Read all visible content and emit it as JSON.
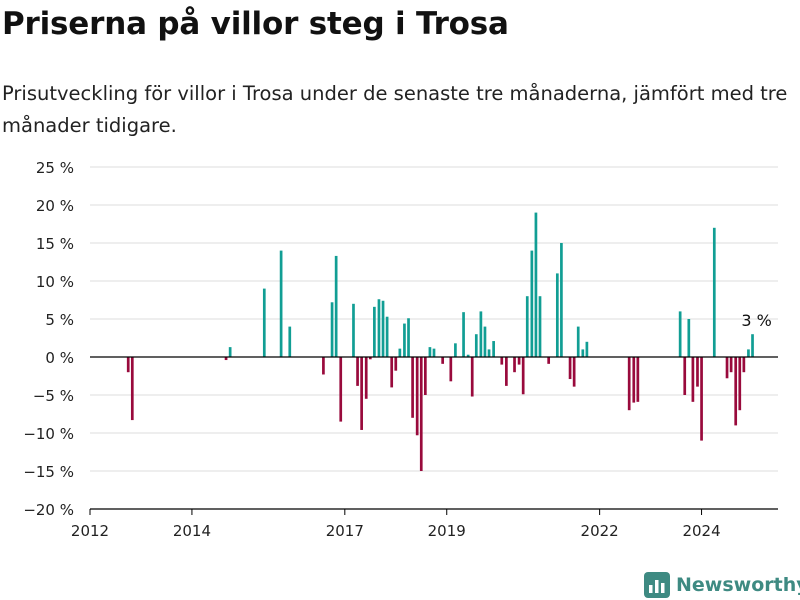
{
  "header": {
    "title": "Priserna på villor steg i Trosa",
    "subtitle": "Prisutveckling för villor i Trosa under de senaste tre månaderna, jämfört med tre månader tidigare."
  },
  "brand": {
    "name": "Newsworthy",
    "icon": "newsworthy-logo-icon"
  },
  "colors": {
    "positive": "#119e94",
    "negative": "#990a3c",
    "grid": "#dddddd",
    "axis": "#000000"
  },
  "chart_data": {
    "type": "bar",
    "title": "",
    "xlabel": "",
    "ylabel": "",
    "ylim": [
      -20,
      25
    ],
    "xlim": [
      2012.0,
      2025.5
    ],
    "y_ticks": [
      {
        "value": 25,
        "label": "25 %"
      },
      {
        "value": 20,
        "label": "20 %"
      },
      {
        "value": 15,
        "label": "15 %"
      },
      {
        "value": 10,
        "label": "10 %"
      },
      {
        "value": 5,
        "label": "5 %"
      },
      {
        "value": 0,
        "label": "0 %"
      },
      {
        "value": -5,
        "label": "−5 %"
      },
      {
        "value": -10,
        "label": "−10 %"
      },
      {
        "value": -15,
        "label": "−15 %"
      },
      {
        "value": -20,
        "label": "−20 %"
      }
    ],
    "x_ticks": [
      {
        "value": 2012,
        "label": "2012"
      },
      {
        "value": 2014,
        "label": "2014"
      },
      {
        "value": 2017,
        "label": "2017"
      },
      {
        "value": 2019,
        "label": "2019"
      },
      {
        "value": 2022,
        "label": "2022"
      },
      {
        "value": 2024,
        "label": "2024"
      }
    ],
    "grid": true,
    "annotation": {
      "x": 2025.08,
      "value": 3,
      "label": "3 %"
    },
    "bars": [
      {
        "x": 2012.75,
        "value": -2
      },
      {
        "x": 2012.83,
        "value": -8.3
      },
      {
        "x": 2014.67,
        "value": -0.4
      },
      {
        "x": 2014.75,
        "value": 1.3
      },
      {
        "x": 2015.42,
        "value": 9
      },
      {
        "x": 2015.75,
        "value": 14
      },
      {
        "x": 2015.92,
        "value": 4
      },
      {
        "x": 2016.58,
        "value": -2.3
      },
      {
        "x": 2016.75,
        "value": 7.2
      },
      {
        "x": 2016.83,
        "value": 13.3
      },
      {
        "x": 2016.92,
        "value": -8.5
      },
      {
        "x": 2017.17,
        "value": 7
      },
      {
        "x": 2017.25,
        "value": -3.8
      },
      {
        "x": 2017.33,
        "value": -9.6
      },
      {
        "x": 2017.42,
        "value": -5.5
      },
      {
        "x": 2017.5,
        "value": -0.3
      },
      {
        "x": 2017.58,
        "value": 6.6
      },
      {
        "x": 2017.67,
        "value": 7.6
      },
      {
        "x": 2017.75,
        "value": 7.4
      },
      {
        "x": 2017.83,
        "value": 5.3
      },
      {
        "x": 2017.92,
        "value": -4
      },
      {
        "x": 2018.0,
        "value": -1.8
      },
      {
        "x": 2018.08,
        "value": 1.1
      },
      {
        "x": 2018.17,
        "value": 4.4
      },
      {
        "x": 2018.25,
        "value": 5.1
      },
      {
        "x": 2018.33,
        "value": -8
      },
      {
        "x": 2018.42,
        "value": -10.3
      },
      {
        "x": 2018.5,
        "value": -15
      },
      {
        "x": 2018.58,
        "value": -5
      },
      {
        "x": 2018.67,
        "value": 1.3
      },
      {
        "x": 2018.75,
        "value": 1.1
      },
      {
        "x": 2018.92,
        "value": -0.9
      },
      {
        "x": 2019.08,
        "value": -3.2
      },
      {
        "x": 2019.17,
        "value": 1.8
      },
      {
        "x": 2019.33,
        "value": 5.9
      },
      {
        "x": 2019.42,
        "value": 0.3
      },
      {
        "x": 2019.5,
        "value": -5.2
      },
      {
        "x": 2019.58,
        "value": 3
      },
      {
        "x": 2019.67,
        "value": 6
      },
      {
        "x": 2019.75,
        "value": 4
      },
      {
        "x": 2019.83,
        "value": 1
      },
      {
        "x": 2019.92,
        "value": 2.1
      },
      {
        "x": 2020.08,
        "value": -1
      },
      {
        "x": 2020.17,
        "value": -3.8
      },
      {
        "x": 2020.33,
        "value": -2
      },
      {
        "x": 2020.42,
        "value": -1
      },
      {
        "x": 2020.5,
        "value": -4.9
      },
      {
        "x": 2020.58,
        "value": 8
      },
      {
        "x": 2020.67,
        "value": 14
      },
      {
        "x": 2020.75,
        "value": 19
      },
      {
        "x": 2020.83,
        "value": 8
      },
      {
        "x": 2021.0,
        "value": -0.9
      },
      {
        "x": 2021.17,
        "value": 11
      },
      {
        "x": 2021.25,
        "value": 15
      },
      {
        "x": 2021.42,
        "value": -2.9
      },
      {
        "x": 2021.5,
        "value": -3.9
      },
      {
        "x": 2021.58,
        "value": 4
      },
      {
        "x": 2021.67,
        "value": 1
      },
      {
        "x": 2021.75,
        "value": 2
      },
      {
        "x": 2022.58,
        "value": -7
      },
      {
        "x": 2022.67,
        "value": -6
      },
      {
        "x": 2022.75,
        "value": -5.9
      },
      {
        "x": 2023.58,
        "value": 6
      },
      {
        "x": 2023.67,
        "value": -5
      },
      {
        "x": 2023.75,
        "value": 5
      },
      {
        "x": 2023.83,
        "value": -5.9
      },
      {
        "x": 2023.92,
        "value": -3.9
      },
      {
        "x": 2024.0,
        "value": -11
      },
      {
        "x": 2024.25,
        "value": 17
      },
      {
        "x": 2024.5,
        "value": -2.8
      },
      {
        "x": 2024.58,
        "value": -2
      },
      {
        "x": 2024.67,
        "value": -9
      },
      {
        "x": 2024.75,
        "value": -7
      },
      {
        "x": 2024.83,
        "value": -2
      },
      {
        "x": 2024.92,
        "value": 1
      },
      {
        "x": 2025.0,
        "value": 3
      }
    ]
  }
}
